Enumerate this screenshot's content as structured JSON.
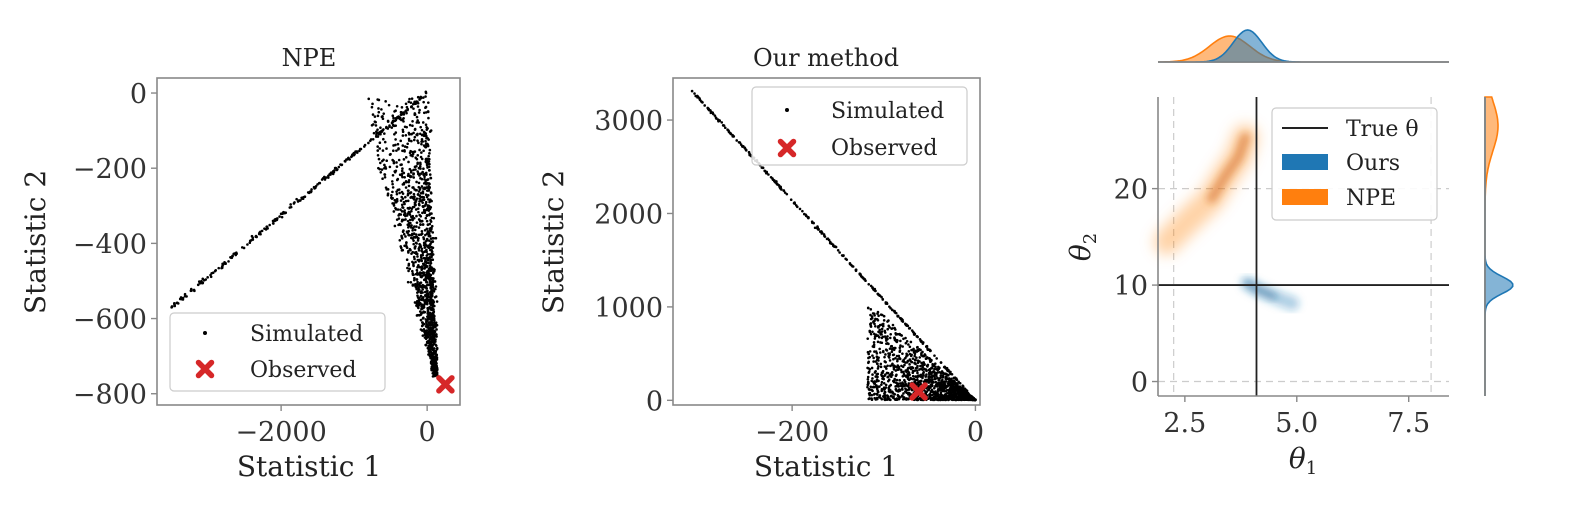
{
  "colors": {
    "ours": "#1f77b4",
    "npe": "#ff7f0e",
    "observed": "#d62728",
    "simulated": "#000000",
    "true_theta": "#222222"
  },
  "chart_data": [
    {
      "type": "scatter",
      "title": "NPE",
      "xlabel": "Statistic 1",
      "ylabel": "Statistic 2",
      "xlim": [
        -3700,
        450
      ],
      "ylim": [
        -830,
        40
      ],
      "xticks": [
        -2000,
        0
      ],
      "xtick_labels": [
        "−2000",
        "0"
      ],
      "yticks": [
        0,
        -200,
        -400,
        -600,
        -800
      ],
      "ytick_labels": [
        "0",
        "−200",
        "−400",
        "−600",
        "−800"
      ],
      "series": [
        {
          "name": "Simulated",
          "marker": "dot",
          "segments": [
            {
              "from": [
                -3500,
                -570
              ],
              "to": [
                0,
                0
              ]
            }
          ],
          "cloud": {
            "x": [
              -1000,
              150
            ],
            "y": [
              -760,
              -10
            ]
          }
        },
        {
          "name": "Observed",
          "marker": "x",
          "points": [
            [
              250,
              -775
            ]
          ]
        }
      ],
      "legend": {
        "position": "lower-left",
        "entries": [
          "Simulated",
          "Observed"
        ]
      }
    },
    {
      "type": "scatter",
      "title": "Our method",
      "xlabel": "Statistic 1",
      "ylabel": "Statistic 2",
      "xlim": [
        -330,
        5
      ],
      "ylim": [
        -50,
        3450
      ],
      "xticks": [
        -200,
        0
      ],
      "xtick_labels": [
        "−200",
        "0"
      ],
      "yticks": [
        0,
        1000,
        2000,
        3000
      ],
      "ytick_labels": [
        "0",
        "1000",
        "2000",
        "3000"
      ],
      "series": [
        {
          "name": "Simulated",
          "marker": "dot",
          "segments": [
            {
              "from": [
                -310,
                3320
              ],
              "to": [
                0,
                0
              ]
            }
          ],
          "cloud": {
            "x": [
              -120,
              0
            ],
            "y": [
              0,
              700
            ]
          }
        },
        {
          "name": "Observed",
          "marker": "x",
          "points": [
            [
              -62,
              95
            ]
          ]
        }
      ],
      "legend": {
        "position": "upper-right",
        "entries": [
          "Simulated",
          "Observed"
        ]
      }
    },
    {
      "type": "scatter",
      "xlabel": "θ₁",
      "ylabel": "θ₂",
      "xlim": [
        1.9,
        8.4
      ],
      "ylim": [
        -1.5,
        29.5
      ],
      "xticks": [
        2.5,
        5.0,
        7.5
      ],
      "xtick_labels": [
        "2.5",
        "5.0",
        "7.5"
      ],
      "yticks": [
        0,
        10,
        20
      ],
      "ytick_labels": [
        "0",
        "10",
        "20"
      ],
      "grid": true,
      "true_theta": {
        "theta1": 4.1,
        "theta2": 10
      },
      "series": [
        {
          "name": "Ours",
          "kind": "density",
          "path": [
            [
              3.9,
              10.2
            ],
            [
              4.1,
              9.6
            ],
            [
              4.5,
              8.8
            ],
            [
              4.9,
              8.1
            ]
          ]
        },
        {
          "name": "NPE",
          "kind": "density",
          "path": [
            [
              2.1,
              14.5
            ],
            [
              2.6,
              16.8
            ],
            [
              3.1,
              19.0
            ],
            [
              3.4,
              21.3
            ],
            [
              3.7,
              23.3
            ],
            [
              3.85,
              25.3
            ]
          ]
        }
      ],
      "marginals": {
        "theta1": {
          "ours_peak": 3.9,
          "npe_peak": 3.5
        },
        "theta2": {
          "ours_peak": 10.0,
          "npe_peak": 26.5
        }
      },
      "legend": {
        "position": "upper-right",
        "entries": [
          "True θ",
          "Ours",
          "NPE"
        ]
      }
    }
  ],
  "text": {
    "p1": {
      "title": "NPE",
      "xlabel": "Statistic 1",
      "ylabel": "Statistic 2",
      "legend_sim": "Simulated",
      "legend_obs": "Observed"
    },
    "p2": {
      "title": "Our method",
      "xlabel": "Statistic 1",
      "ylabel": "Statistic 2",
      "legend_sim": "Simulated",
      "legend_obs": "Observed"
    },
    "p3": {
      "xlabel_sym": "θ",
      "xlabel_sub": "1",
      "ylabel_sym": "θ",
      "ylabel_sub": "2",
      "legend_true": "True θ",
      "legend_ours": "Ours",
      "legend_npe": "NPE"
    }
  }
}
